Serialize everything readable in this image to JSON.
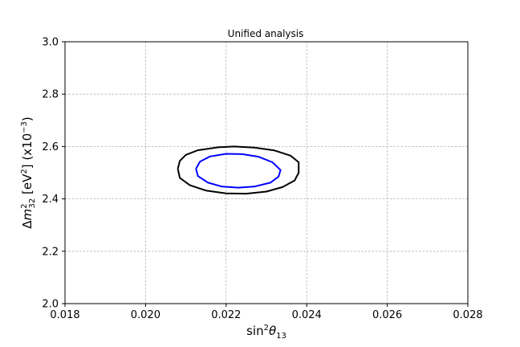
{
  "chart_data": {
    "type": "contour",
    "title": "Unified analysis",
    "xlabel": {
      "pre": "sin",
      "sup": "2",
      "mid": "θ",
      "sub": "13"
    },
    "ylabel": {
      "delta": "Δ",
      "m": "m",
      "sup": "2",
      "sub": "32",
      "unit_open": " [eV",
      "unit_sup": "2",
      "unit_close": "] (x10",
      "exp": "−3",
      "end": ")"
    },
    "xlim": [
      0.018,
      0.028
    ],
    "ylim": [
      2.0,
      3.0
    ],
    "xticks": [
      0.018,
      0.02,
      0.022,
      0.024,
      0.026,
      0.028
    ],
    "xtick_labels": [
      "0.018",
      "0.020",
      "0.022",
      "0.024",
      "0.026",
      "0.028"
    ],
    "yticks": [
      2.0,
      2.2,
      2.4,
      2.6,
      2.8,
      3.0
    ],
    "ytick_labels": [
      "2.0",
      "2.2",
      "2.4",
      "2.6",
      "2.8",
      "3.0"
    ],
    "grid": true,
    "series": [
      {
        "color": "#000000",
        "points": [
          [
            0.0208,
            2.515
          ],
          [
            0.02085,
            2.545
          ],
          [
            0.021,
            2.568
          ],
          [
            0.0213,
            2.586
          ],
          [
            0.0218,
            2.597
          ],
          [
            0.0222,
            2.6
          ],
          [
            0.0227,
            2.596
          ],
          [
            0.0232,
            2.585
          ],
          [
            0.0236,
            2.565
          ],
          [
            0.0238,
            2.54
          ],
          [
            0.0238,
            2.5
          ],
          [
            0.0237,
            2.47
          ],
          [
            0.0234,
            2.445
          ],
          [
            0.023,
            2.428
          ],
          [
            0.0225,
            2.42
          ],
          [
            0.022,
            2.421
          ],
          [
            0.0215,
            2.432
          ],
          [
            0.0211,
            2.452
          ],
          [
            0.02085,
            2.48
          ],
          [
            0.0208,
            2.515
          ]
        ]
      },
      {
        "color": "#0000ff",
        "points": [
          [
            0.02125,
            2.515
          ],
          [
            0.02135,
            2.542
          ],
          [
            0.0216,
            2.562
          ],
          [
            0.022,
            2.572
          ],
          [
            0.0224,
            2.571
          ],
          [
            0.0228,
            2.561
          ],
          [
            0.02315,
            2.54
          ],
          [
            0.02335,
            2.51
          ],
          [
            0.0233,
            2.485
          ],
          [
            0.0231,
            2.462
          ],
          [
            0.0227,
            2.447
          ],
          [
            0.0223,
            2.443
          ],
          [
            0.0219,
            2.447
          ],
          [
            0.02155,
            2.462
          ],
          [
            0.0213,
            2.487
          ],
          [
            0.02125,
            2.515
          ]
        ]
      }
    ]
  }
}
